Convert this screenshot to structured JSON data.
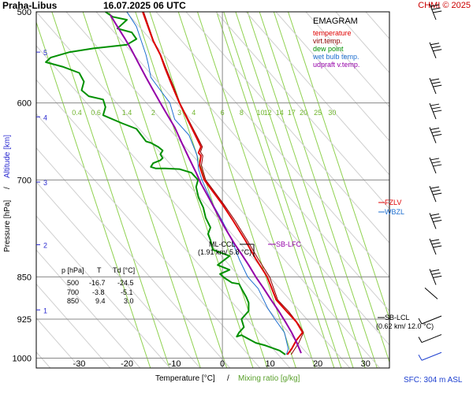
{
  "header": {
    "station": "Praha-Libus",
    "datetime": "16.07.2025 06 UTC",
    "copyright": "CHMI © 2025"
  },
  "legend": {
    "title": "EMAGRAM",
    "items": [
      {
        "label": "temperature",
        "color": "#e00000"
      },
      {
        "label": "virt.temp.",
        "color": "#8b0000"
      },
      {
        "label": "dew point",
        "color": "#009000"
      },
      {
        "label": "wet bulb temp.",
        "color": "#1e6fd0"
      },
      {
        "label": "udpraft v.temp.",
        "color": "#9400a8"
      }
    ]
  },
  "axes": {
    "xlabel_temp": "Temperature [°C]",
    "xlabel_sep": "/",
    "xlabel_mix": "Mixing ratio [g/kg]",
    "ylabel_pressure": "Pressure [hPa]",
    "ylabel_sep": "/",
    "ylabel_alt": "Altitude [km]",
    "sfc": "SFC: 304 m ASL"
  },
  "table": {
    "headers": [
      "p [hPa]",
      "T",
      "Td [°C]"
    ],
    "rows": [
      [
        "500",
        "-16.7",
        "-24.5"
      ],
      [
        "700",
        "-3.8",
        "-5.1"
      ],
      [
        "850",
        "9.4",
        "3.0"
      ]
    ]
  },
  "annotations": {
    "fzlv": "FZLV",
    "wbzl": "WBZL",
    "ml_ccl_label": "ML-CCL",
    "ml_ccl_value": "(1.91 km/ 5.8 °C)",
    "sb_lfc": "SB-LFC",
    "sb_lcl_label": "SB-LCL",
    "sb_lcl_value": "(0.62 km/ 12.0 °C)"
  },
  "colors": {
    "temperature": "#e00000",
    "virtual_temperature": "#8b0000",
    "dew_point": "#009000",
    "wet_bulb": "#1e6fd0",
    "updraft": "#9400a8",
    "mixing_ratio": "#8fd14f",
    "altitude": "#2a2ad0",
    "grid": "#888888"
  },
  "chart_data": {
    "type": "line",
    "x_scale": "linear",
    "y_scale": "log",
    "xlim": [
      -39,
      35
    ],
    "ylim": [
      1020,
      500
    ],
    "x_ticks": [
      -30,
      -20,
      -10,
      0,
      10,
      20,
      30
    ],
    "pressure_ticks": [
      500,
      600,
      700,
      850,
      925,
      1000
    ],
    "altitude_ticks_km": [
      {
        "label": "1",
        "p": 908
      },
      {
        "label": "2",
        "p": 797
      },
      {
        "label": "3",
        "p": 703
      },
      {
        "label": "4",
        "p": 617
      },
      {
        "label": "5",
        "p": 542
      }
    ],
    "mixing_ratio_labels": [
      "0.4",
      "0.6",
      "1.4",
      "2",
      "3",
      "4",
      "6",
      "8",
      "10",
      "12",
      "14",
      "17",
      "20",
      "25",
      "30"
    ],
    "mixing_ratio_label_temps": [
      -30.5,
      -26.5,
      -20,
      -14.5,
      -9,
      -6,
      0,
      4,
      8,
      9.5,
      12,
      14.5,
      17,
      20,
      23
    ],
    "series": [
      {
        "name": "temperature",
        "points": [
          [
            13.6,
            993
          ],
          [
            14.5,
            982
          ],
          [
            15.5,
            965
          ],
          [
            16.8,
            950
          ],
          [
            15.5,
            930
          ],
          [
            13.4,
            910
          ],
          [
            11.3,
            890
          ],
          [
            9.4,
            850
          ],
          [
            7,
            820
          ],
          [
            4.8,
            790
          ],
          [
            2.3,
            760
          ],
          [
            0,
            735
          ],
          [
            -3.8,
            700
          ],
          [
            -4.8,
            680
          ],
          [
            -4.5,
            667
          ],
          [
            -5,
            663
          ],
          [
            -4.5,
            655
          ],
          [
            -6.5,
            630
          ],
          [
            -9,
            600
          ],
          [
            -10.5,
            580
          ],
          [
            -12,
            560
          ],
          [
            -13,
            545
          ],
          [
            -14.5,
            530
          ],
          [
            -16.7,
            500
          ]
        ]
      },
      {
        "name": "virt.temp.",
        "points": [
          [
            14.4,
            993
          ],
          [
            16,
            970
          ],
          [
            17,
            950
          ],
          [
            16,
            935
          ],
          [
            13.8,
            910
          ],
          [
            11.6,
            890
          ],
          [
            9.9,
            850
          ],
          [
            7.5,
            820
          ],
          [
            5.2,
            790
          ],
          [
            2.7,
            760
          ],
          [
            0.3,
            735
          ],
          [
            -3.5,
            700
          ],
          [
            -4.4,
            680
          ],
          [
            -4.1,
            667
          ],
          [
            -4.6,
            662
          ],
          [
            -4.2,
            655
          ],
          [
            -6.3,
            630
          ],
          [
            -8.9,
            600
          ],
          [
            -10.3,
            580
          ],
          [
            -11.8,
            560
          ],
          [
            -12.9,
            545
          ],
          [
            -14.4,
            530
          ],
          [
            -16.5,
            500
          ]
        ]
      },
      {
        "name": "dew point",
        "points": [
          [
            13.2,
            993
          ],
          [
            12,
            985
          ],
          [
            9,
            975
          ],
          [
            7,
            970
          ],
          [
            5,
            960
          ],
          [
            4,
            955
          ],
          [
            3,
            958
          ],
          [
            3.5,
            950
          ],
          [
            4.5,
            940
          ],
          [
            4,
            925
          ],
          [
            5.5,
            910
          ],
          [
            5.5,
            895
          ],
          [
            5,
            885
          ],
          [
            4,
            870
          ],
          [
            3.5,
            862
          ],
          [
            2,
            860
          ],
          [
            0.5,
            852
          ],
          [
            -0.5,
            845
          ],
          [
            1.5,
            838
          ],
          [
            -1,
            830
          ],
          [
            1.5,
            815
          ],
          [
            -2,
            805
          ],
          [
            -2.5,
            790
          ],
          [
            -3,
            780
          ],
          [
            -2.5,
            770
          ],
          [
            -3.5,
            755
          ],
          [
            -4,
            740
          ],
          [
            -5,
            725
          ],
          [
            -5.5,
            710
          ],
          [
            -5.1,
            700
          ],
          [
            -6.5,
            690
          ],
          [
            -9,
            685
          ],
          [
            -12,
            684
          ],
          [
            -14,
            684
          ],
          [
            -15,
            682
          ],
          [
            -14.5,
            677
          ],
          [
            -13,
            673
          ],
          [
            -12.5,
            670
          ],
          [
            -13,
            665
          ],
          [
            -12.5,
            660
          ],
          [
            -13.5,
            655
          ],
          [
            -15,
            650
          ],
          [
            -16,
            648
          ],
          [
            -17,
            640
          ],
          [
            -18,
            632
          ],
          [
            -21,
            625
          ],
          [
            -25,
            615
          ],
          [
            -24.5,
            605
          ],
          [
            -25,
            596
          ],
          [
            -28,
            592
          ],
          [
            -29.5,
            585
          ],
          [
            -29,
            575
          ],
          [
            -30,
            565
          ],
          [
            -33.5,
            558
          ],
          [
            -37,
            553
          ],
          [
            -36,
            548
          ],
          [
            -32,
            542
          ],
          [
            -27,
            538
          ],
          [
            -20,
            534
          ],
          [
            -18,
            528
          ],
          [
            -19,
            521
          ],
          [
            -22,
            517
          ],
          [
            -20,
            508
          ],
          [
            -23,
            505
          ],
          [
            -24.5,
            500
          ]
        ]
      },
      {
        "name": "wet bulb temp.",
        "points": [
          [
            13.4,
            993
          ],
          [
            13.8,
            982
          ],
          [
            13,
            950
          ],
          [
            11,
            925
          ],
          [
            9.5,
            905
          ],
          [
            7.5,
            870
          ],
          [
            5.3,
            850
          ],
          [
            3.5,
            820
          ],
          [
            2,
            790
          ],
          [
            0,
            760
          ],
          [
            -2,
            735
          ],
          [
            -4.3,
            700
          ],
          [
            -5,
            685
          ],
          [
            -5.3,
            667
          ],
          [
            -5.7,
            660
          ],
          [
            -7,
            640
          ],
          [
            -10,
            620
          ],
          [
            -11,
            600
          ],
          [
            -13,
            585
          ],
          [
            -15,
            570
          ],
          [
            -15.5,
            556
          ],
          [
            -16,
            545
          ],
          [
            -17,
            530
          ],
          [
            -18,
            515
          ],
          [
            -20,
            500
          ]
        ]
      },
      {
        "name": "udpraft v.temp.",
        "points": [
          [
            16.5,
            990
          ],
          [
            15.5,
            968
          ],
          [
            14.5,
            950
          ],
          [
            13.2,
            930
          ],
          [
            11.8,
            910
          ],
          [
            10.2,
            890
          ],
          [
            8.5,
            868
          ],
          [
            7,
            850
          ],
          [
            5.5,
            830
          ],
          [
            4,
            812
          ],
          [
            2.5,
            795
          ],
          [
            0.5,
            770
          ],
          [
            -1,
            750
          ],
          [
            -2.5,
            730
          ],
          [
            -4.5,
            705
          ],
          [
            -5.5,
            690
          ],
          [
            -7,
            670
          ],
          [
            -8.5,
            650
          ],
          [
            -10,
            630
          ],
          [
            -12,
            610
          ],
          [
            -13,
            600
          ],
          [
            -14.5,
            585
          ],
          [
            -16,
            570
          ],
          [
            -17.5,
            555
          ],
          [
            -19,
            540
          ],
          [
            -20.5,
            527
          ],
          [
            -22,
            515
          ],
          [
            -23.5,
            503
          ]
        ]
      }
    ],
    "wind_barbs_p": [
      500,
      540,
      580,
      610,
      640,
      680,
      720,
      760,
      800,
      850,
      880,
      925,
      960,
      995
    ]
  }
}
